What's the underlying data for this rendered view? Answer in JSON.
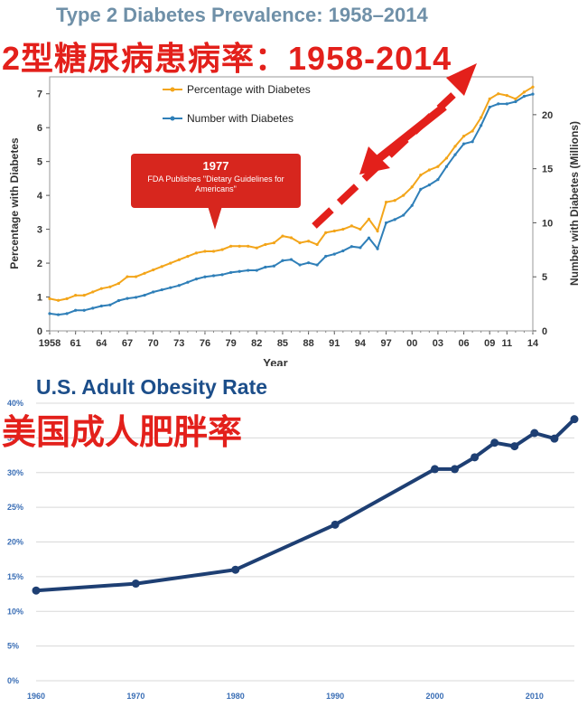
{
  "chart_data": [
    {
      "type": "line",
      "title": "Type 2 Diabetes Prevalence: 1958–2014",
      "subtitle": "2型糖尿病患病率：1958-2014",
      "xlabel": "Year",
      "ylabel": "Percentage with Diabetes",
      "y2label": "Number with Diabetes (Millions)",
      "x_ticks": [
        "1958",
        "61",
        "64",
        "67",
        "70",
        "73",
        "76",
        "79",
        "82",
        "85",
        "88",
        "91",
        "94",
        "97",
        "00",
        "03",
        "06",
        "09",
        "11",
        "14"
      ],
      "y_ticks": [
        "0",
        "1",
        "2",
        "3",
        "4",
        "5",
        "6",
        "7"
      ],
      "y2_ticks": [
        "0",
        "5",
        "10",
        "15",
        "20"
      ],
      "ylim": [
        0,
        7.5
      ],
      "y2lim": [
        0,
        23.5
      ],
      "xlim": [
        1958,
        2014
      ],
      "legend_position": "top-left",
      "annotation": {
        "year_label": "1977",
        "text": "FDA Publishes \"Dietary Guidelines for Americans\""
      },
      "series": [
        {
          "name": "Percentage with Diabetes",
          "color": "#f3a51a",
          "axis": "left",
          "x": [
            1958,
            1959,
            1960,
            1961,
            1962,
            1963,
            1964,
            1965,
            1966,
            1967,
            1968,
            1969,
            1970,
            1971,
            1972,
            1973,
            1974,
            1975,
            1976,
            1977,
            1978,
            1979,
            1980,
            1981,
            1982,
            1983,
            1984,
            1985,
            1986,
            1987,
            1988,
            1989,
            1990,
            1991,
            1992,
            1993,
            1994,
            1995,
            1996,
            1997,
            1998,
            1999,
            2000,
            2001,
            2002,
            2003,
            2004,
            2005,
            2006,
            2007,
            2008,
            2009,
            2010,
            2011,
            2012,
            2013,
            2014
          ],
          "values": [
            0.95,
            0.9,
            0.95,
            1.05,
            1.05,
            1.15,
            1.25,
            1.3,
            1.4,
            1.6,
            1.6,
            1.7,
            1.8,
            1.9,
            2.0,
            2.1,
            2.2,
            2.3,
            2.35,
            2.35,
            2.4,
            2.5,
            2.5,
            2.5,
            2.45,
            2.55,
            2.6,
            2.8,
            2.75,
            2.6,
            2.65,
            2.55,
            2.9,
            2.95,
            3.0,
            3.1,
            3.0,
            3.3,
            2.95,
            3.8,
            3.85,
            4.0,
            4.25,
            4.6,
            4.75,
            4.85,
            5.1,
            5.45,
            5.75,
            5.9,
            6.3,
            6.85,
            7.0,
            6.95,
            6.85,
            7.05,
            7.2
          ]
        },
        {
          "name": "Number with Diabetes",
          "color": "#2f7fb8",
          "axis": "right",
          "x": [
            1958,
            1959,
            1960,
            1961,
            1962,
            1963,
            1964,
            1965,
            1966,
            1967,
            1968,
            1969,
            1970,
            1971,
            1972,
            1973,
            1974,
            1975,
            1976,
            1977,
            1978,
            1979,
            1980,
            1981,
            1982,
            1983,
            1984,
            1985,
            1986,
            1987,
            1988,
            1989,
            1990,
            1991,
            1992,
            1993,
            1994,
            1995,
            1996,
            1997,
            1998,
            1999,
            2000,
            2001,
            2002,
            2003,
            2004,
            2005,
            2006,
            2007,
            2008,
            2009,
            2010,
            2011,
            2012,
            2013,
            2014
          ],
          "values": [
            1.6,
            1.5,
            1.6,
            1.9,
            1.9,
            2.1,
            2.3,
            2.4,
            2.8,
            3.0,
            3.1,
            3.3,
            3.6,
            3.8,
            4.0,
            4.2,
            4.5,
            4.8,
            5.0,
            5.1,
            5.2,
            5.4,
            5.5,
            5.6,
            5.6,
            5.9,
            6.0,
            6.5,
            6.6,
            6.1,
            6.3,
            6.1,
            6.9,
            7.1,
            7.4,
            7.8,
            7.7,
            8.6,
            7.6,
            10.0,
            10.3,
            10.7,
            11.6,
            13.1,
            13.5,
            14.0,
            15.2,
            16.3,
            17.3,
            17.5,
            19.0,
            20.7,
            21.0,
            21.0,
            21.2,
            21.7,
            21.9
          ]
        }
      ]
    },
    {
      "type": "line",
      "title": "U.S. Adult Obesity Rate",
      "subtitle": "美国成人肥胖率",
      "xlabel": "",
      "ylabel": "",
      "x_ticks": [
        "1960",
        "1970",
        "1980",
        "1990",
        "2000",
        "2010"
      ],
      "y_ticks": [
        "0%",
        "5%",
        "10%",
        "15%",
        "20%",
        "25%",
        "30%",
        "35%",
        "40%"
      ],
      "ylim": [
        0,
        40
      ],
      "xlim": [
        1960,
        2014
      ],
      "grid": true,
      "series": [
        {
          "color": "#1e3f73",
          "x": [
            1960,
            1970,
            1980,
            1990,
            2000,
            2002,
            2004,
            2006,
            2008,
            2010,
            2012,
            2014
          ],
          "values": [
            13.0,
            14.0,
            16.0,
            22.5,
            30.5,
            30.5,
            32.2,
            34.3,
            33.8,
            35.7,
            34.9,
            37.7
          ]
        }
      ]
    }
  ]
}
